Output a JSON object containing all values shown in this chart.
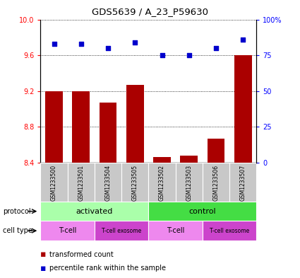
{
  "title": "GDS5639 / A_23_P59630",
  "samples": [
    "GSM1233500",
    "GSM1233501",
    "GSM1233504",
    "GSM1233505",
    "GSM1233502",
    "GSM1233503",
    "GSM1233506",
    "GSM1233507"
  ],
  "transformed_counts": [
    9.2,
    9.2,
    9.07,
    9.27,
    8.46,
    8.48,
    8.67,
    9.6
  ],
  "percentile_ranks": [
    83,
    83,
    80,
    84,
    75,
    75,
    80,
    86
  ],
  "ylim_left": [
    8.4,
    10.0
  ],
  "ylim_right": [
    0,
    100
  ],
  "yticks_left": [
    8.4,
    8.8,
    9.2,
    9.6,
    10.0
  ],
  "yticks_right": [
    0,
    25,
    50,
    75,
    100
  ],
  "bar_color": "#AA0000",
  "dot_color": "#0000CC",
  "protocol_color_activated": "#AAFFAA",
  "protocol_color_control": "#44DD44",
  "cell_type_color_light": "#EE88EE",
  "cell_type_color_dark": "#CC44CC",
  "sample_bg_color": "#C8C8C8",
  "legend_bar_color": "#AA0000",
  "legend_dot_color": "#0000CC",
  "legend_bar_label": "transformed count",
  "legend_dot_label": "percentile rank within the sample"
}
